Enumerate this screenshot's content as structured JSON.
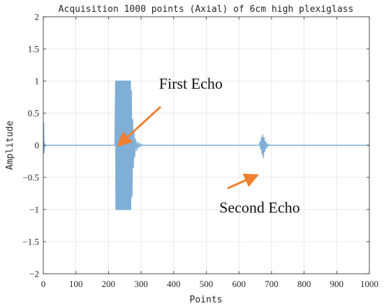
{
  "chart_data": {
    "type": "line",
    "title": "Acquisition 1000 points (Axial) of 6cm high plexiglass",
    "xlabel": "Points",
    "ylabel": "Amplitude",
    "xlim": [
      0,
      1000
    ],
    "ylim": [
      -2,
      2
    ],
    "xticks": [
      0,
      100,
      200,
      300,
      400,
      500,
      600,
      700,
      800,
      900,
      1000
    ],
    "yticks": [
      -2,
      -1.5,
      -1,
      -0.5,
      0,
      0.5,
      1,
      1.5,
      2
    ],
    "grid": true,
    "series_color": "#7FAED6",
    "annotation_color": "#F08030",
    "series": [
      {
        "points": [
          [
            0,
            0
          ],
          [
            1,
            0.35
          ],
          [
            2,
            -0.12
          ],
          [
            3,
            0.05
          ],
          [
            4,
            -0.03
          ],
          [
            6,
            0
          ],
          [
            220,
            0
          ],
          [
            222,
            1
          ],
          [
            223,
            -1
          ],
          [
            225,
            1
          ],
          [
            226,
            -1
          ],
          [
            228,
            1
          ],
          [
            229,
            -1
          ],
          [
            231,
            1
          ],
          [
            232,
            -1
          ],
          [
            234,
            1
          ],
          [
            235,
            -1
          ],
          [
            237,
            1
          ],
          [
            238,
            -1
          ],
          [
            240,
            1
          ],
          [
            241,
            -1
          ],
          [
            243,
            1
          ],
          [
            244,
            -1
          ],
          [
            246,
            1
          ],
          [
            247,
            -1
          ],
          [
            249,
            1
          ],
          [
            250,
            -1
          ],
          [
            252,
            1
          ],
          [
            253,
            -1
          ],
          [
            255,
            1
          ],
          [
            256,
            -1
          ],
          [
            258,
            1
          ],
          [
            259,
            -1
          ],
          [
            261,
            1
          ],
          [
            262,
            -1
          ],
          [
            264,
            1
          ],
          [
            265,
            -1
          ],
          [
            267,
            1
          ],
          [
            268,
            -1
          ],
          [
            270,
            0.85
          ],
          [
            272,
            -0.8
          ],
          [
            274,
            0.4
          ],
          [
            276,
            -0.35
          ],
          [
            278,
            0.2
          ],
          [
            280,
            -0.18
          ],
          [
            283,
            0.1
          ],
          [
            286,
            -0.08
          ],
          [
            289,
            0.05
          ],
          [
            292,
            -0.04
          ],
          [
            295,
            0.03
          ],
          [
            298,
            -0.02
          ],
          [
            302,
            0.01
          ],
          [
            306,
            0
          ],
          [
            662,
            0
          ],
          [
            665,
            0.05
          ],
          [
            667,
            -0.06
          ],
          [
            669,
            0.12
          ],
          [
            671,
            -0.14
          ],
          [
            673,
            0.16
          ],
          [
            675,
            -0.19
          ],
          [
            677,
            0.12
          ],
          [
            679,
            -0.1
          ],
          [
            681,
            0.06
          ],
          [
            683,
            -0.05
          ],
          [
            686,
            0.03
          ],
          [
            689,
            -0.02
          ],
          [
            692,
            0.01
          ],
          [
            696,
            0
          ],
          [
            1000,
            0
          ]
        ]
      }
    ],
    "annotations": [
      {
        "text": "First Echo",
        "x": 355,
        "y": 0.88,
        "arrow_from": [
          360,
          0.6
        ],
        "arrow_to": [
          235,
          0.02
        ]
      },
      {
        "text": "Second Echo",
        "x": 540,
        "y": -1.05,
        "arrow_from": [
          565,
          -0.67
        ],
        "arrow_to": [
          650,
          -0.48
        ]
      }
    ]
  }
}
